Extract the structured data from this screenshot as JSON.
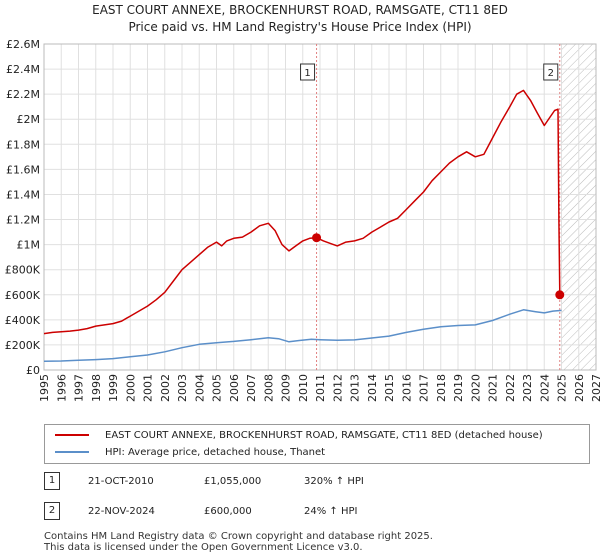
{
  "title_line1": "EAST COURT ANNEXE, BROCKENHURST ROAD, RAMSGATE, CT11 8ED",
  "title_line2": "Price paid vs. HM Land Registry's House Price Index (HPI)",
  "colors": {
    "red": "#cc0000",
    "blue": "#5b8fc9",
    "grid": "#e0e0e0",
    "vline": "#e08080",
    "hatch": "#bbbbbb"
  },
  "chart_data": {
    "type": "line",
    "x_range": [
      1995,
      2027
    ],
    "y_range": [
      0,
      2600000
    ],
    "x_ticks": [
      "1995",
      "1996",
      "1997",
      "1998",
      "1999",
      "2000",
      "2001",
      "2002",
      "2003",
      "2004",
      "2005",
      "2006",
      "2007",
      "2008",
      "2009",
      "2010",
      "2011",
      "2012",
      "2013",
      "2014",
      "2015",
      "2016",
      "2017",
      "2018",
      "2019",
      "2020",
      "2021",
      "2022",
      "2023",
      "2024",
      "2025",
      "2026",
      "2027"
    ],
    "y_ticks": [
      {
        "value": 0,
        "label": "£0"
      },
      {
        "value": 200000,
        "label": "£200K"
      },
      {
        "value": 400000,
        "label": "£400K"
      },
      {
        "value": 600000,
        "label": "£600K"
      },
      {
        "value": 800000,
        "label": "£800K"
      },
      {
        "value": 1000000,
        "label": "£1M"
      },
      {
        "value": 1200000,
        "label": "£1.2M"
      },
      {
        "value": 1400000,
        "label": "£1.4M"
      },
      {
        "value": 1600000,
        "label": "£1.6M"
      },
      {
        "value": 1800000,
        "label": "£1.8M"
      },
      {
        "value": 2000000,
        "label": "£2M"
      },
      {
        "value": 2200000,
        "label": "£2.2M"
      },
      {
        "value": 2400000,
        "label": "£2.4M"
      },
      {
        "value": 2600000,
        "label": "£2.6M"
      }
    ],
    "hatch_from": 2025.0,
    "series": [
      {
        "name": "EAST COURT ANNEXE, BROCKENHURST ROAD, RAMSGATE, CT11 8ED (detached house)",
        "color": "#cc0000",
        "points": [
          [
            1995.0,
            290000
          ],
          [
            1995.5,
            300000
          ],
          [
            1996.0,
            305000
          ],
          [
            1996.5,
            310000
          ],
          [
            1997.0,
            318000
          ],
          [
            1997.5,
            330000
          ],
          [
            1998.0,
            350000
          ],
          [
            1998.5,
            360000
          ],
          [
            1999.0,
            370000
          ],
          [
            1999.5,
            390000
          ],
          [
            2000.0,
            430000
          ],
          [
            2000.5,
            470000
          ],
          [
            2001.0,
            510000
          ],
          [
            2001.5,
            560000
          ],
          [
            2002.0,
            620000
          ],
          [
            2002.5,
            710000
          ],
          [
            2003.0,
            800000
          ],
          [
            2003.5,
            860000
          ],
          [
            2004.0,
            920000
          ],
          [
            2004.5,
            980000
          ],
          [
            2005.0,
            1020000
          ],
          [
            2005.3,
            990000
          ],
          [
            2005.6,
            1030000
          ],
          [
            2006.0,
            1050000
          ],
          [
            2006.5,
            1060000
          ],
          [
            2007.0,
            1100000
          ],
          [
            2007.5,
            1150000
          ],
          [
            2008.0,
            1170000
          ],
          [
            2008.4,
            1110000
          ],
          [
            2008.8,
            1000000
          ],
          [
            2009.2,
            950000
          ],
          [
            2009.6,
            990000
          ],
          [
            2010.0,
            1030000
          ],
          [
            2010.4,
            1050000
          ],
          [
            2010.8,
            1055000
          ],
          [
            2011.2,
            1030000
          ],
          [
            2011.6,
            1010000
          ],
          [
            2012.0,
            990000
          ],
          [
            2012.5,
            1020000
          ],
          [
            2013.0,
            1030000
          ],
          [
            2013.5,
            1050000
          ],
          [
            2014.0,
            1100000
          ],
          [
            2014.5,
            1140000
          ],
          [
            2015.0,
            1180000
          ],
          [
            2015.5,
            1210000
          ],
          [
            2016.0,
            1280000
          ],
          [
            2016.5,
            1350000
          ],
          [
            2017.0,
            1420000
          ],
          [
            2017.5,
            1510000
          ],
          [
            2018.0,
            1580000
          ],
          [
            2018.5,
            1650000
          ],
          [
            2019.0,
            1700000
          ],
          [
            2019.5,
            1740000
          ],
          [
            2020.0,
            1700000
          ],
          [
            2020.5,
            1720000
          ],
          [
            2021.0,
            1850000
          ],
          [
            2021.5,
            1980000
          ],
          [
            2022.0,
            2100000
          ],
          [
            2022.4,
            2200000
          ],
          [
            2022.8,
            2230000
          ],
          [
            2023.2,
            2150000
          ],
          [
            2023.6,
            2050000
          ],
          [
            2024.0,
            1950000
          ],
          [
            2024.3,
            2010000
          ],
          [
            2024.6,
            2070000
          ],
          [
            2024.8,
            2080000
          ],
          [
            2024.85,
            1200000
          ],
          [
            2024.9,
            600000
          ]
        ]
      },
      {
        "name": "HPI: Average price, detached house, Thanet",
        "color": "#5b8fc9",
        "points": [
          [
            1995.0,
            70000
          ],
          [
            1996.0,
            72000
          ],
          [
            1997.0,
            77000
          ],
          [
            1998.0,
            83000
          ],
          [
            1999.0,
            91000
          ],
          [
            2000.0,
            105000
          ],
          [
            2001.0,
            120000
          ],
          [
            2002.0,
            145000
          ],
          [
            2003.0,
            178000
          ],
          [
            2004.0,
            205000
          ],
          [
            2005.0,
            218000
          ],
          [
            2006.0,
            228000
          ],
          [
            2007.0,
            242000
          ],
          [
            2008.0,
            258000
          ],
          [
            2008.6,
            250000
          ],
          [
            2009.2,
            225000
          ],
          [
            2009.8,
            235000
          ],
          [
            2010.5,
            245000
          ],
          [
            2011.0,
            242000
          ],
          [
            2012.0,
            237000
          ],
          [
            2013.0,
            240000
          ],
          [
            2014.0,
            255000
          ],
          [
            2015.0,
            270000
          ],
          [
            2016.0,
            300000
          ],
          [
            2017.0,
            325000
          ],
          [
            2018.0,
            345000
          ],
          [
            2019.0,
            355000
          ],
          [
            2020.0,
            360000
          ],
          [
            2021.0,
            395000
          ],
          [
            2022.0,
            445000
          ],
          [
            2022.8,
            480000
          ],
          [
            2023.5,
            465000
          ],
          [
            2024.0,
            455000
          ],
          [
            2024.5,
            470000
          ],
          [
            2025.0,
            475000
          ]
        ]
      }
    ],
    "sales": [
      {
        "label": "1",
        "year": 2010.8,
        "price": 1055000,
        "date": "21-OCT-2010",
        "price_text": "£1,055,000",
        "hpi_text": "320% ↑ HPI"
      },
      {
        "label": "2",
        "year": 2024.9,
        "price": 600000,
        "date": "22-NOV-2024",
        "price_text": "£600,000",
        "hpi_text": "24% ↑ HPI"
      }
    ]
  },
  "legend": {
    "red_label": "EAST COURT ANNEXE, BROCKENHURST ROAD, RAMSGATE, CT11 8ED (detached house)",
    "blue_label": "HPI: Average price, detached house, Thanet"
  },
  "transactions": [
    {
      "label": "1",
      "date": "21-OCT-2010",
      "price": "£1,055,000",
      "hpi": "320% ↑ HPI"
    },
    {
      "label": "2",
      "date": "22-NOV-2024",
      "price": "£600,000",
      "hpi": "24% ↑ HPI"
    }
  ],
  "footer": {
    "line1": "Contains HM Land Registry data © Crown copyright and database right 2025.",
    "line2": "This data is licensed under the Open Government Licence v3.0."
  }
}
